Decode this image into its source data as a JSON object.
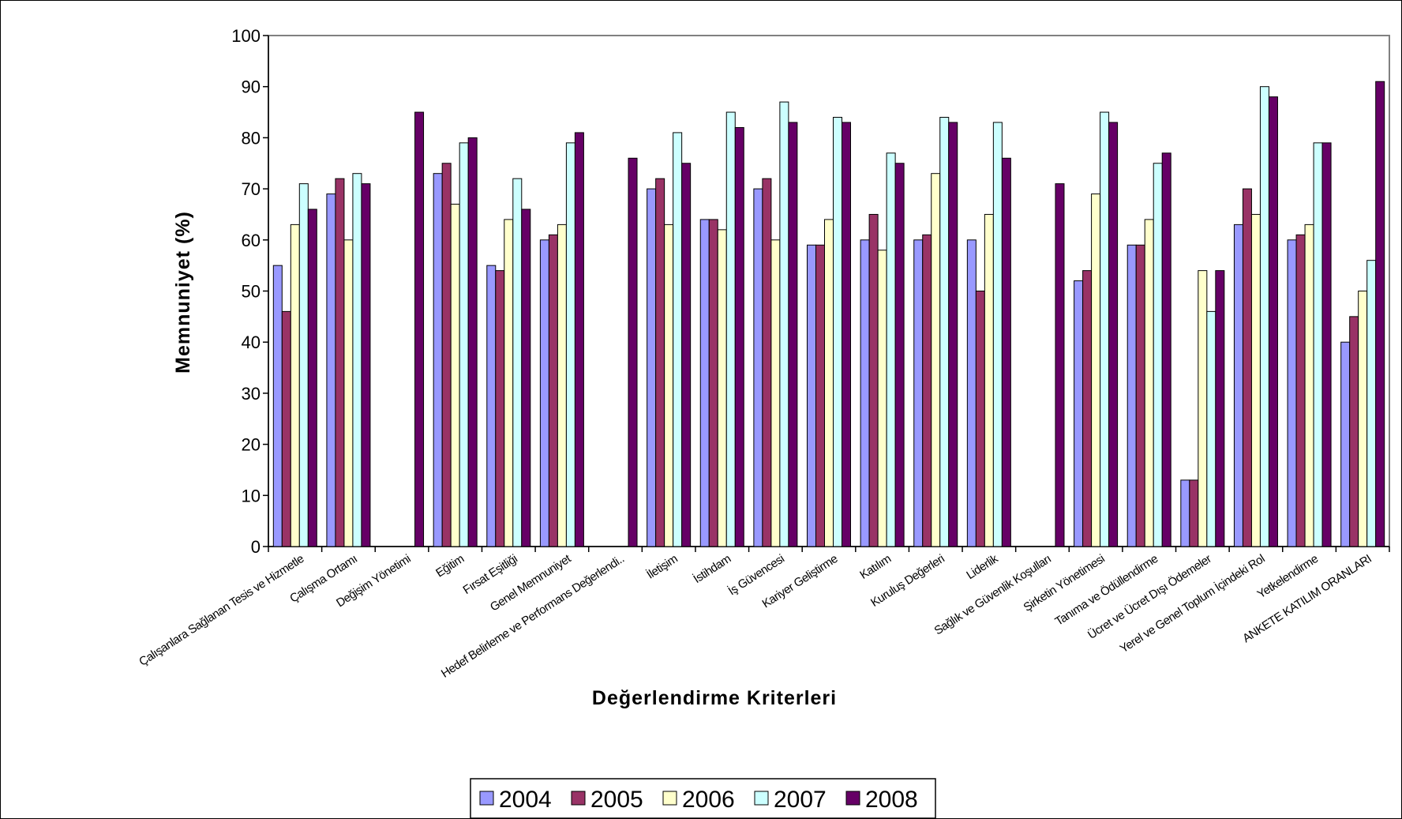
{
  "chart_data": {
    "type": "bar",
    "title": "",
    "xlabel": "Değerlendirme Kriterleri",
    "ylabel": "Memnuniyet (%)",
    "ylim": [
      0,
      100
    ],
    "yticks": [
      0,
      10,
      20,
      30,
      40,
      50,
      60,
      70,
      80,
      90,
      100
    ],
    "grid": false,
    "legend_position": "bottom",
    "categories": [
      "Çalışanlara Sağlanan Tesis ve Hizmetle",
      "Çalışma Ortamı",
      "Değişim Yönetimi",
      "Eğitim",
      "Fırsat Eşitliği",
      "Genel Memnuniyet",
      "Hedef Belirleme ve Performans Değerlendi..",
      "İletişim",
      "İstihdam",
      "İş Güvencesi",
      "Kariyer Geliştirme",
      "Katılım",
      "Kuruluş Değerleri",
      "Liderlik",
      "Sağlık ve Güvenlik Koşulları",
      "Şirketin Yönetimesi",
      "Tanıma ve Ödüllendirme",
      "Ücret ve Ücret Dışı Ödemeler",
      "Yerel ve Genel Toplum İçindeki Rol",
      "Yetkelendirme",
      "ANKETE KATILIM ORANLARI"
    ],
    "series": [
      {
        "name": "2004",
        "color": "#9999FF",
        "values": [
          55,
          69,
          null,
          73,
          55,
          60,
          null,
          70,
          64,
          70,
          59,
          60,
          60,
          60,
          null,
          52,
          59,
          13,
          63,
          60,
          40
        ]
      },
      {
        "name": "2005",
        "color": "#993366",
        "values": [
          46,
          72,
          null,
          75,
          54,
          61,
          null,
          72,
          64,
          72,
          59,
          65,
          61,
          50,
          null,
          54,
          59,
          13,
          70,
          61,
          45
        ]
      },
      {
        "name": "2006",
        "color": "#FFFFCC",
        "values": [
          63,
          60,
          null,
          67,
          64,
          63,
          null,
          63,
          62,
          60,
          64,
          58,
          73,
          65,
          null,
          69,
          64,
          54,
          65,
          63,
          50
        ]
      },
      {
        "name": "2007",
        "color": "#CCFFFF",
        "values": [
          71,
          73,
          null,
          79,
          72,
          79,
          null,
          81,
          85,
          87,
          84,
          77,
          84,
          83,
          null,
          85,
          75,
          46,
          90,
          79,
          56
        ]
      },
      {
        "name": "2008",
        "color": "#660066",
        "values": [
          66,
          71,
          85,
          80,
          66,
          81,
          76,
          75,
          82,
          83,
          83,
          75,
          83,
          76,
          71,
          83,
          77,
          54,
          88,
          79,
          91
        ]
      }
    ]
  }
}
